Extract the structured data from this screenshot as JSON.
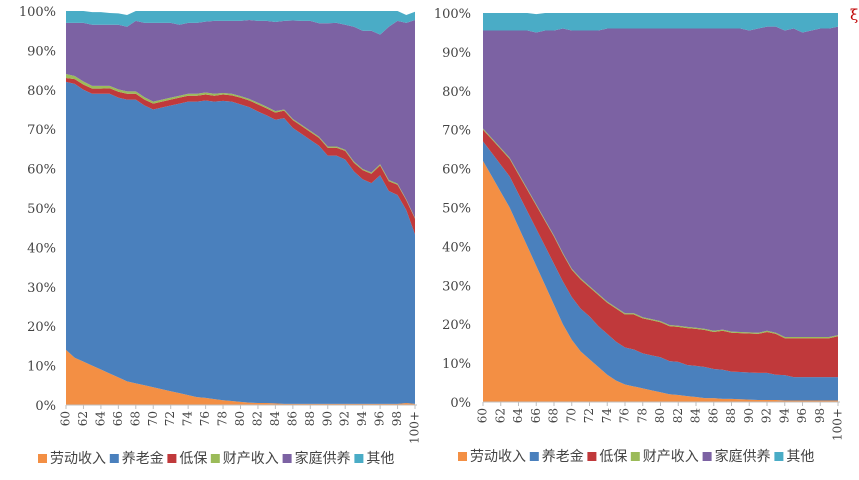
{
  "colors": {
    "labor": "#f38f44",
    "pension": "#4a80bd",
    "dibao": "#c0393b",
    "property": "#9bbb59",
    "family": "#7c62a3",
    "other": "#4aacc6"
  },
  "chart_data": [
    {
      "type": "area",
      "stacked": true,
      "percent": true,
      "x": [
        "60",
        "61",
        "62",
        "63",
        "64",
        "65",
        "66",
        "67",
        "68",
        "69",
        "70",
        "71",
        "72",
        "73",
        "74",
        "75",
        "76",
        "77",
        "78",
        "79",
        "80",
        "81",
        "82",
        "83",
        "84",
        "85",
        "86",
        "87",
        "88",
        "89",
        "90",
        "91",
        "92",
        "93",
        "94",
        "95",
        "96",
        "97",
        "98",
        "99",
        "100+"
      ],
      "x_tick_labels": [
        "60",
        "62",
        "64",
        "66",
        "68",
        "70",
        "72",
        "74",
        "76",
        "78",
        "80",
        "82",
        "84",
        "86",
        "88",
        "90",
        "92",
        "94",
        "96",
        "98",
        "100+"
      ],
      "y_tick_labels": [
        "0%",
        "10%",
        "20%",
        "30%",
        "40%",
        "50%",
        "60%",
        "70%",
        "80%",
        "90%",
        "100%"
      ],
      "ylim": [
        0,
        100
      ],
      "series": [
        {
          "name": "劳动收入",
          "key": "labor",
          "values": [
            14,
            12,
            11,
            10,
            9,
            8,
            7,
            6,
            5.5,
            5,
            4.5,
            4,
            3.5,
            3,
            2.5,
            2,
            1.8,
            1.5,
            1.2,
            1,
            0.8,
            0.6,
            0.5,
            0.5,
            0.4,
            0.3,
            0.3,
            0.3,
            0.3,
            0.3,
            0.3,
            0.3,
            0.3,
            0.3,
            0.3,
            0.3,
            0.3,
            0.3,
            0.3,
            0.5,
            0.3
          ]
        },
        {
          "name": "养老金",
          "key": "pension",
          "values": [
            68,
            69.5,
            69,
            69,
            70,
            71,
            71,
            71.5,
            72,
            71,
            70.5,
            71.5,
            72.5,
            73.5,
            74.5,
            75,
            75.5,
            75.5,
            76,
            76,
            75.5,
            75,
            74,
            73,
            72,
            72.5,
            70,
            68.5,
            67,
            65.5,
            63,
            63,
            62,
            59,
            57,
            56,
            58,
            54,
            53,
            49,
            43
          ]
        },
        {
          "name": "低保",
          "key": "dibao",
          "values": [
            1,
            1.2,
            1.3,
            1.3,
            1.3,
            1.4,
            1.5,
            1.5,
            1.5,
            1.5,
            1.5,
            1.5,
            1.5,
            1.5,
            1.5,
            1.5,
            1.5,
            1.5,
            1.6,
            1.6,
            1.7,
            1.7,
            1.8,
            1.8,
            1.8,
            1.9,
            2,
            2,
            2,
            2,
            2,
            2,
            2.2,
            2.2,
            2.3,
            2.4,
            2.5,
            2.5,
            2.6,
            2.5,
            4
          ]
        },
        {
          "name": "财产收入",
          "key": "property",
          "values": [
            1,
            0.8,
            0.8,
            0.7,
            0.7,
            0.6,
            0.6,
            0.6,
            0.6,
            0.6,
            0.5,
            0.5,
            0.5,
            0.5,
            0.5,
            0.5,
            0.5,
            0.5,
            0.4,
            0.4,
            0.4,
            0.4,
            0.4,
            0.4,
            0.4,
            0.3,
            0.3,
            0.3,
            0.3,
            0.3,
            0.3,
            0.3,
            0.3,
            0.3,
            0.3,
            0.3,
            0.3,
            0.3,
            0.3,
            0.2,
            0.2
          ]
        },
        {
          "name": "家庭供养",
          "key": "family",
          "values": [
            13,
            13.5,
            14.9,
            15.5,
            15.5,
            15.5,
            16.4,
            16.4,
            17.9,
            18.9,
            20,
            19.5,
            19,
            18,
            18,
            18,
            18,
            18.5,
            18.3,
            18.5,
            19.1,
            20,
            20.8,
            21.8,
            22.6,
            22.5,
            25,
            26.4,
            27.9,
            28.8,
            31.3,
            31.4,
            31.7,
            34.2,
            35.1,
            36,
            32.9,
            38.9,
            41.3,
            44.8,
            50.2
          ]
        },
        {
          "name": "其他",
          "key": "other",
          "values": [
            3,
            3,
            3,
            3.2,
            3.2,
            3,
            2.9,
            3,
            2.5,
            3,
            3,
            3,
            3,
            3.5,
            3,
            3,
            2.7,
            2.5,
            2.5,
            2.5,
            2.5,
            2.3,
            2.5,
            2.5,
            2.8,
            2.5,
            2.4,
            2.5,
            2.5,
            3.1,
            3.1,
            3,
            3.5,
            4,
            5,
            5,
            6,
            4,
            2.5,
            2,
            2.1
          ]
        }
      ]
    },
    {
      "type": "area",
      "stacked": true,
      "percent": true,
      "x": [
        "60",
        "61",
        "62",
        "63",
        "64",
        "65",
        "66",
        "67",
        "68",
        "69",
        "70",
        "71",
        "72",
        "73",
        "74",
        "75",
        "76",
        "77",
        "78",
        "79",
        "80",
        "81",
        "82",
        "83",
        "84",
        "85",
        "86",
        "87",
        "88",
        "89",
        "90",
        "91",
        "92",
        "93",
        "94",
        "95",
        "96",
        "97",
        "98",
        "99",
        "100+"
      ],
      "x_tick_labels": [
        "60",
        "62",
        "64",
        "66",
        "68",
        "70",
        "72",
        "74",
        "76",
        "78",
        "80",
        "82",
        "84",
        "86",
        "88",
        "90",
        "92",
        "94",
        "96",
        "98",
        "100+"
      ],
      "y_tick_labels": [
        "0%",
        "10%",
        "20%",
        "30%",
        "40%",
        "50%",
        "60%",
        "70%",
        "80%",
        "90%",
        "100%"
      ],
      "ylim": [
        0,
        100
      ],
      "series": [
        {
          "name": "劳动收入",
          "key": "labor",
          "values": [
            62,
            58,
            54,
            50,
            45,
            40,
            35,
            30,
            25,
            20,
            16,
            13,
            11,
            9,
            7,
            5.5,
            4.5,
            4,
            3.5,
            3,
            2.5,
            2,
            1.8,
            1.5,
            1.3,
            1,
            1,
            0.8,
            0.8,
            0.7,
            0.6,
            0.5,
            0.5,
            0.5,
            0.4,
            0.4,
            0.4,
            0.4,
            0.4,
            0.4,
            0.4
          ]
        },
        {
          "name": "养老金",
          "key": "pension",
          "values": [
            5,
            6,
            7,
            8,
            8.5,
            9,
            9.5,
            10,
            10.5,
            11,
            11,
            11,
            11,
            10.5,
            10.5,
            10,
            9.5,
            9.5,
            9,
            9,
            9,
            8.5,
            8.5,
            8,
            8,
            8,
            7.5,
            7.5,
            7,
            7,
            7,
            7,
            7,
            6.5,
            6.5,
            6,
            6,
            6,
            6,
            6,
            6
          ]
        },
        {
          "name": "低保",
          "key": "dibao",
          "values": [
            3,
            3.5,
            4,
            4.5,
            5,
            5.5,
            6,
            6.5,
            7,
            7,
            7,
            7.5,
            7.5,
            8,
            8,
            8.5,
            8.5,
            9,
            9,
            9,
            9,
            9,
            9,
            9.5,
            9.5,
            9.5,
            9.5,
            10,
            10,
            10,
            10,
            10,
            10.5,
            10.5,
            9.5,
            10,
            10,
            10,
            10,
            10,
            10.5
          ]
        },
        {
          "name": "财产收入",
          "key": "property",
          "values": [
            0.3,
            0.3,
            0.3,
            0.3,
            0.3,
            0.3,
            0.3,
            0.3,
            0.3,
            0.3,
            0.3,
            0.3,
            0.3,
            0.3,
            0.3,
            0.3,
            0.3,
            0.3,
            0.3,
            0.3,
            0.3,
            0.3,
            0.3,
            0.3,
            0.3,
            0.3,
            0.3,
            0.3,
            0.3,
            0.3,
            0.3,
            0.3,
            0.3,
            0.3,
            0.3,
            0.3,
            0.3,
            0.3,
            0.3,
            0.3,
            0.3
          ]
        },
        {
          "name": "家庭供养",
          "key": "family",
          "values": [
            25.2,
            27.7,
            30.2,
            32.7,
            36.7,
            40.7,
            44.2,
            48.7,
            52.7,
            57.7,
            61.2,
            63.7,
            65.7,
            67.7,
            70.2,
            71.7,
            73.2,
            73.2,
            74.2,
            74.7,
            75.2,
            76.2,
            76.4,
            76.7,
            76.9,
            77.2,
            77.7,
            77.4,
            77.9,
            78,
            77.6,
            78.2,
            78.2,
            78.7,
            78.8,
            79.3,
            78.3,
            78.8,
            79.3,
            79.3,
            79.3
          ]
        },
        {
          "name": "其他",
          "key": "other",
          "values": [
            4.5,
            4.5,
            4.5,
            4.5,
            4.5,
            4.5,
            4.7,
            4.5,
            4.5,
            4.7,
            4.5,
            4.5,
            4.5,
            4.5,
            4,
            4,
            4,
            4,
            4,
            4,
            4,
            4,
            4,
            4,
            4,
            4,
            4,
            4,
            4,
            4,
            4.5,
            4,
            3.5,
            3.5,
            4.5,
            4,
            5,
            4.5,
            4,
            4,
            3.5
          ]
        }
      ]
    }
  ],
  "corner_mark": "ξ"
}
